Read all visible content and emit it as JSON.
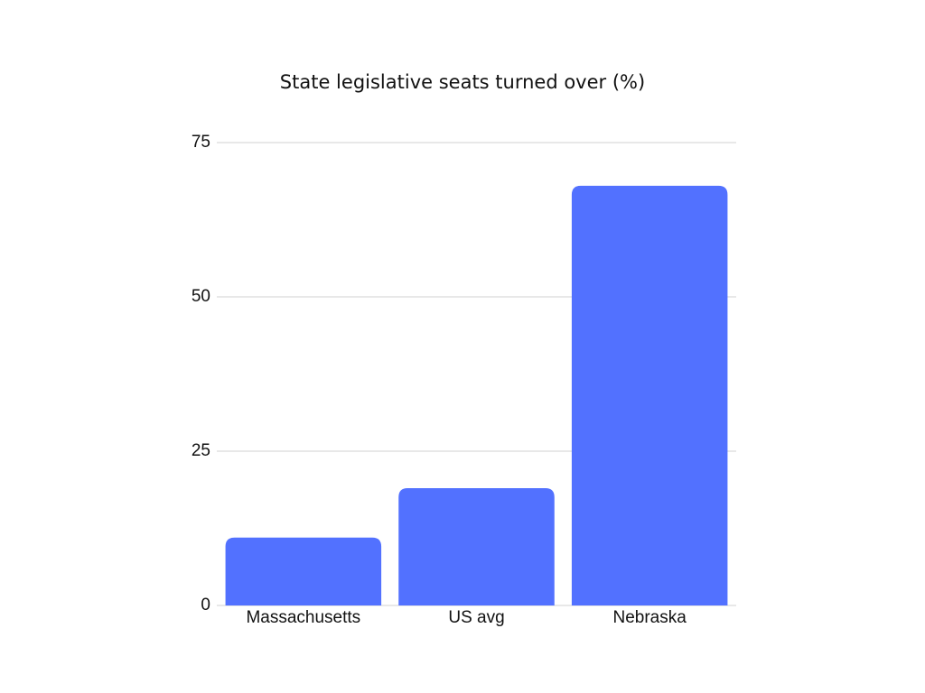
{
  "chart_data": {
    "type": "bar",
    "title": "State legislative seats turned over (%)",
    "categories": [
      "Massachusetts",
      "US avg",
      "Nebraska"
    ],
    "values": [
      11,
      19,
      68
    ],
    "color": "#5271ff",
    "ylim": [
      0,
      75
    ],
    "yticks": [
      0,
      25,
      50,
      75
    ],
    "grid": true
  }
}
